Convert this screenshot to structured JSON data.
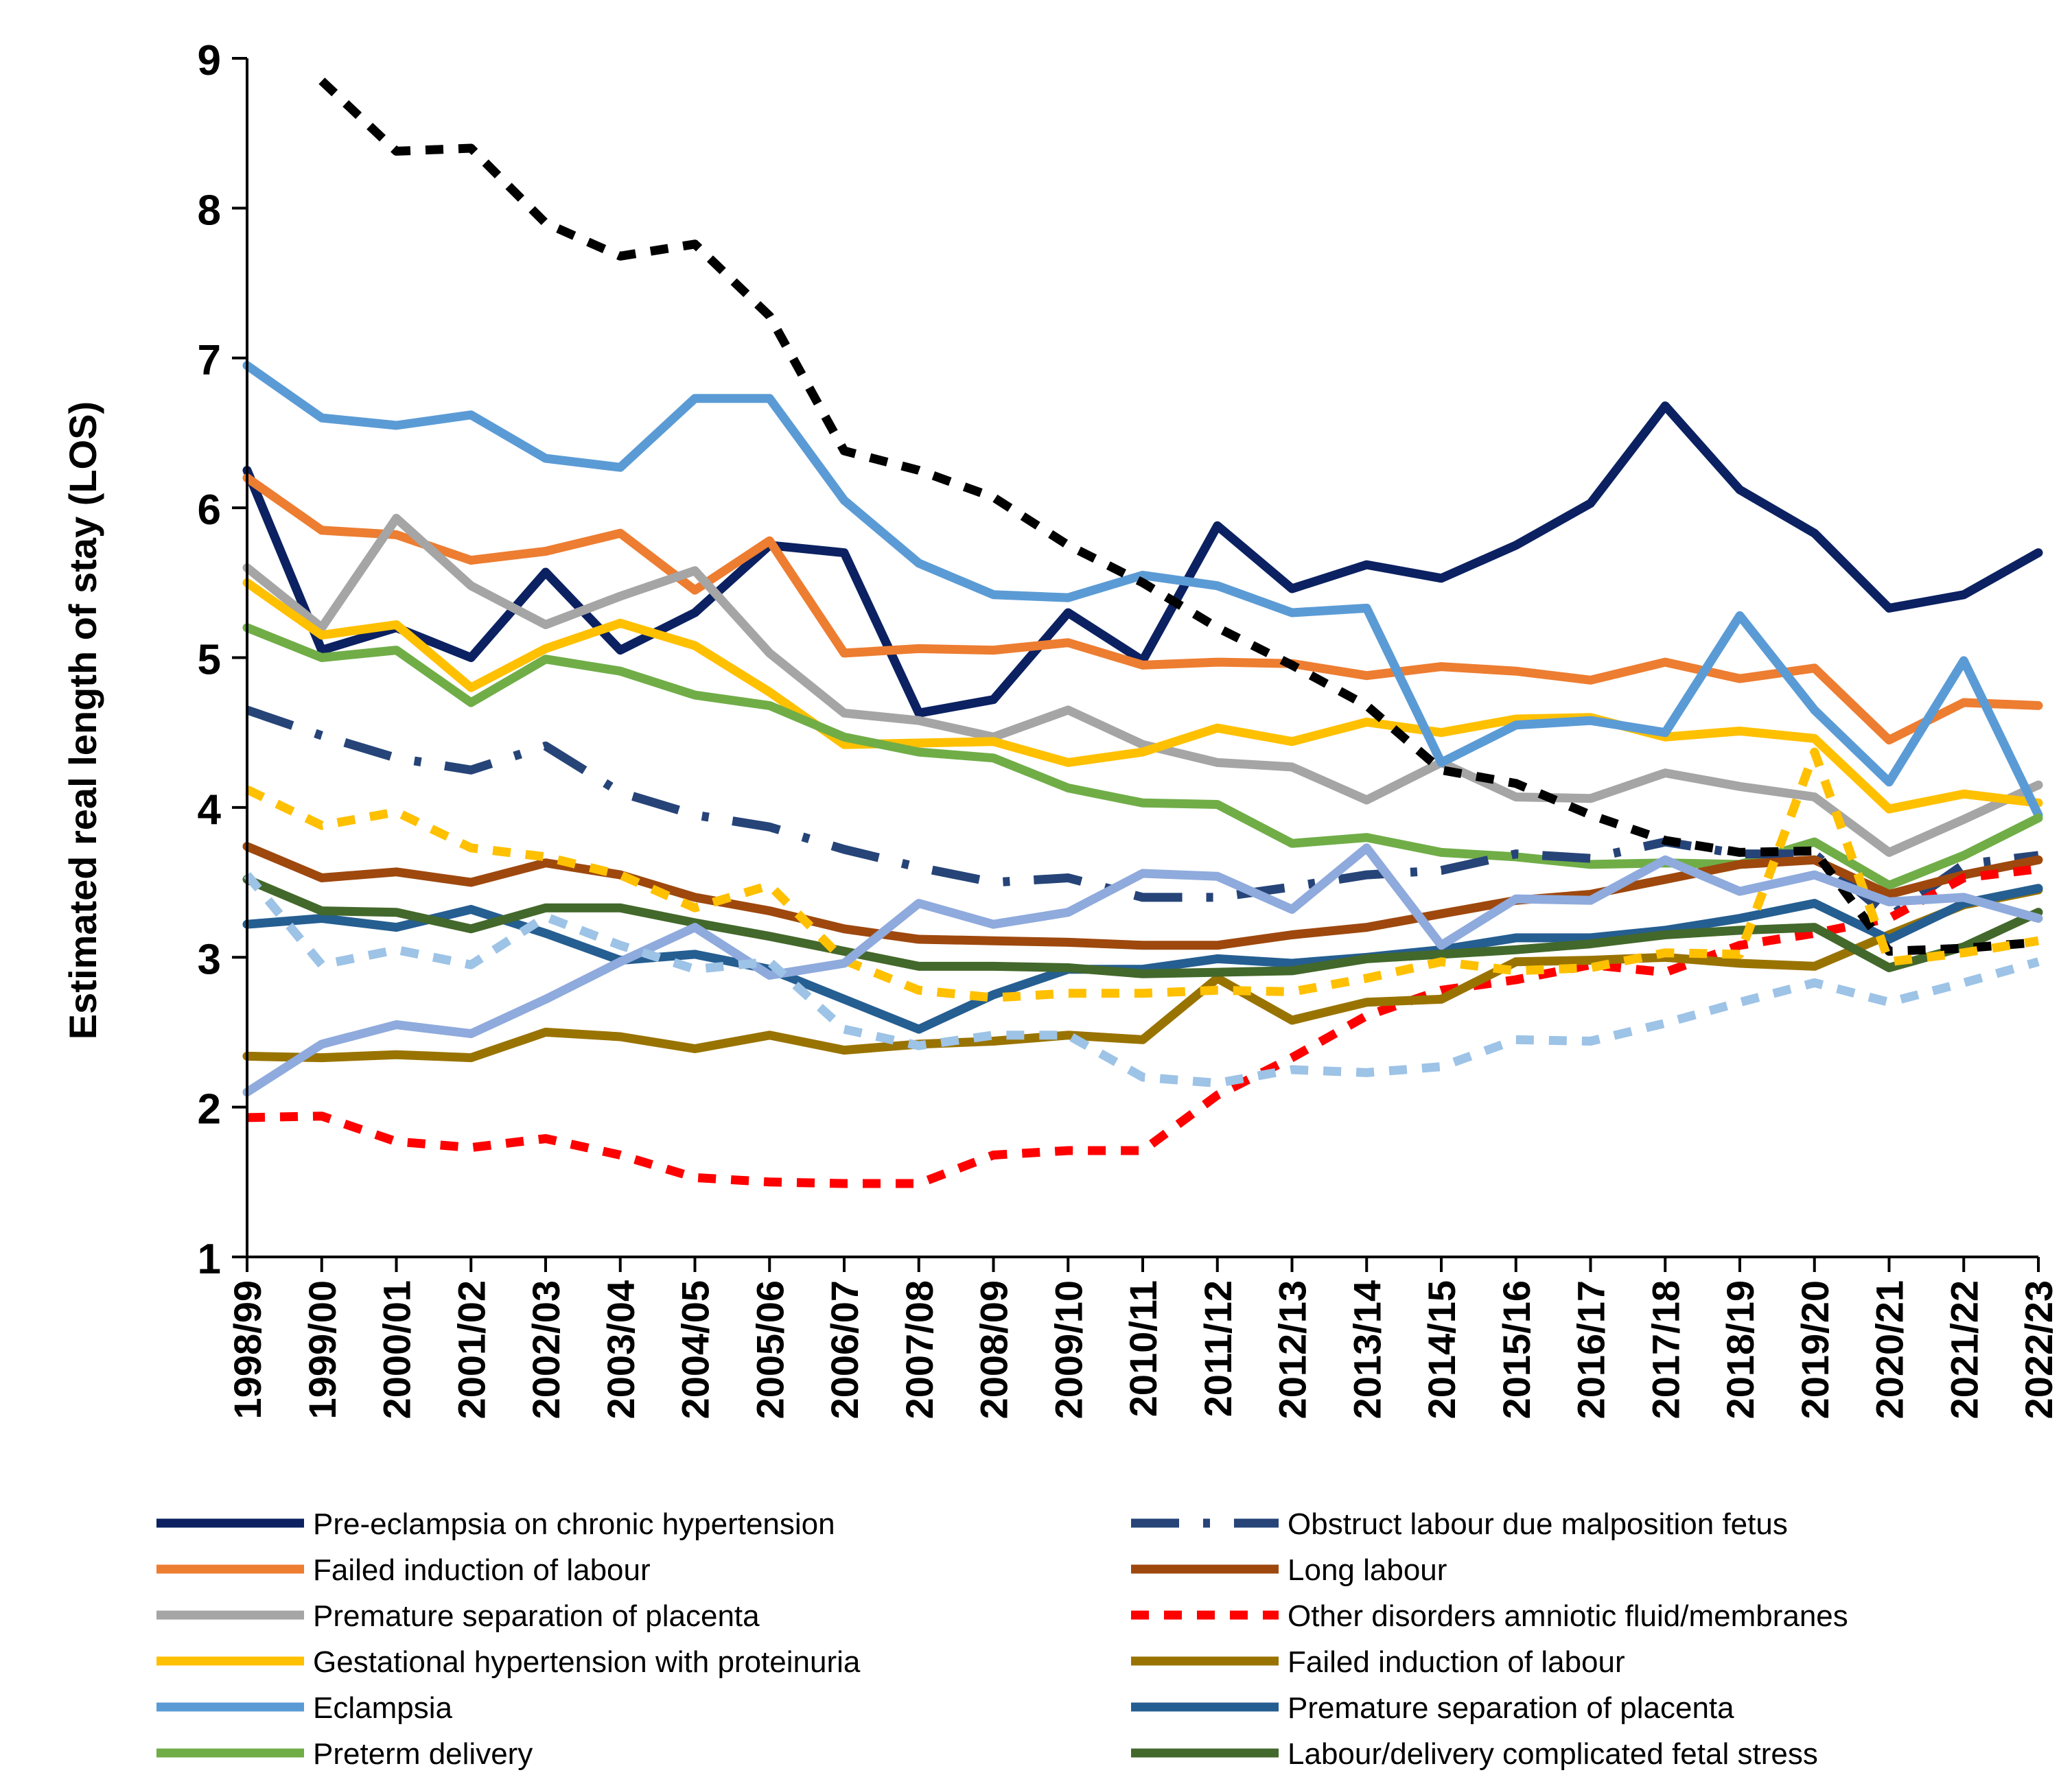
{
  "chart_data": {
    "type": "line",
    "title": "",
    "xlabel": "",
    "ylabel": "Estimated real length of stay (LOS)",
    "ylim": [
      1,
      9
    ],
    "yticks": [
      1,
      2,
      3,
      4,
      5,
      6,
      7,
      8,
      9
    ],
    "grid": false,
    "legend_position": "bottom",
    "categories": [
      "1998/99",
      "1999/00",
      "2000/01",
      "2001/02",
      "2002/03",
      "2003/04",
      "2004/05",
      "2005/06",
      "2006/07",
      "2007/08",
      "2008/09",
      "2009/10",
      "2010/11",
      "2011/12",
      "2012/13",
      "2013/14",
      "2014/15",
      "2015/16",
      "2016/17",
      "2017/18",
      "2018/19",
      "2019/20",
      "2020/21",
      "2021/22",
      "2022/23"
    ],
    "series": [
      {
        "name": "Pre-eclampsia on chronic hypertension",
        "color": "#0b2161",
        "dash": "solid",
        "values": [
          6.25,
          5.05,
          5.2,
          5.0,
          5.57,
          5.05,
          5.3,
          5.75,
          5.7,
          4.63,
          4.72,
          5.3,
          4.98,
          5.88,
          5.46,
          5.62,
          5.53,
          5.75,
          6.03,
          6.68,
          6.12,
          5.83,
          5.33,
          5.42,
          5.7
        ]
      },
      {
        "name": "Failed induction of labour",
        "color": "#ed7d31",
        "dash": "solid",
        "values": [
          6.2,
          5.85,
          5.82,
          5.65,
          5.71,
          5.83,
          5.45,
          5.78,
          5.03,
          5.06,
          5.05,
          5.1,
          4.95,
          4.97,
          4.96,
          4.88,
          4.94,
          4.91,
          4.85,
          4.97,
          4.86,
          4.93,
          4.45,
          4.7,
          4.68
        ]
      },
      {
        "name": "Premature separation of placenta",
        "color": "#a5a5a5",
        "dash": "solid",
        "values": [
          5.6,
          5.2,
          5.93,
          5.48,
          5.22,
          5.41,
          5.58,
          5.03,
          4.63,
          4.58,
          4.47,
          4.65,
          4.42,
          4.3,
          4.27,
          4.05,
          4.3,
          4.07,
          4.06,
          4.23,
          4.14,
          4.07,
          3.7,
          3.92,
          4.15
        ]
      },
      {
        "name": "Gestational hypertension with proteinuria",
        "color": "#ffc000",
        "dash": "solid",
        "values": [
          5.5,
          5.15,
          5.22,
          4.8,
          5.06,
          5.23,
          5.08,
          4.77,
          4.42,
          4.43,
          4.44,
          4.3,
          4.37,
          4.53,
          4.44,
          4.57,
          4.5,
          4.59,
          4.6,
          4.47,
          4.51,
          4.46,
          3.99,
          4.09,
          4.03
        ]
      },
      {
        "name": "Eclampsia",
        "color": "#5b9bd5",
        "dash": "solid",
        "values": [
          6.95,
          6.6,
          6.55,
          6.62,
          6.33,
          6.27,
          6.73,
          6.73,
          6.05,
          5.63,
          5.42,
          5.4,
          5.55,
          5.48,
          5.3,
          5.33,
          4.3,
          4.55,
          4.58,
          4.5,
          5.28,
          4.65,
          4.17,
          4.98,
          3.95
        ]
      },
      {
        "name": "Preterm delivery",
        "color": "#70ad47",
        "dash": "solid",
        "values": [
          5.2,
          5.0,
          5.05,
          4.7,
          4.99,
          4.91,
          4.75,
          4.68,
          4.47,
          4.37,
          4.33,
          4.13,
          4.03,
          4.02,
          3.76,
          3.8,
          3.7,
          3.67,
          3.62,
          3.63,
          3.62,
          3.77,
          3.48,
          3.68,
          3.93
        ]
      },
      {
        "name": "Obstruct labour due malposition fetus",
        "color": "#264478",
        "dash": "longdashdot",
        "values": [
          4.65,
          4.48,
          4.33,
          4.25,
          4.41,
          4.1,
          3.95,
          3.87,
          3.72,
          3.6,
          3.5,
          3.53,
          3.4,
          3.4,
          3.47,
          3.55,
          3.58,
          3.69,
          3.66,
          3.77,
          3.69,
          3.69,
          3.27,
          3.62,
          3.68
        ]
      },
      {
        "name": "Long labour",
        "color": "#9e480e",
        "dash": "solid",
        "values": [
          3.74,
          3.53,
          3.57,
          3.5,
          3.63,
          3.55,
          3.4,
          3.31,
          3.19,
          3.12,
          3.11,
          3.1,
          3.08,
          3.08,
          3.15,
          3.2,
          3.29,
          3.38,
          3.42,
          3.52,
          3.62,
          3.65,
          3.42,
          3.55,
          3.65
        ]
      },
      {
        "name": "Other disorders amniotic fluid/membranes",
        "color": "#ff0000",
        "dash": "dash",
        "values": [
          1.93,
          1.94,
          1.77,
          1.73,
          1.79,
          1.68,
          1.53,
          1.5,
          1.49,
          1.49,
          1.68,
          1.71,
          1.71,
          2.08,
          2.33,
          2.61,
          2.78,
          2.85,
          2.95,
          2.9,
          3.08,
          3.16,
          3.26,
          3.53,
          3.59
        ]
      },
      {
        "name": "Failed induction of labour",
        "color": "#997300",
        "dash": "solid",
        "values": [
          2.34,
          2.33,
          2.35,
          2.33,
          2.5,
          2.47,
          2.39,
          2.48,
          2.38,
          2.42,
          2.44,
          2.48,
          2.45,
          2.86,
          2.58,
          2.7,
          2.72,
          2.97,
          2.98,
          3.0,
          2.96,
          2.94,
          3.15,
          3.35,
          3.45
        ]
      },
      {
        "name": "Premature separation of placenta",
        "color": "#255e91",
        "dash": "solid",
        "values": [
          3.22,
          3.26,
          3.2,
          3.32,
          3.16,
          2.98,
          3.02,
          2.92,
          2.72,
          2.52,
          2.75,
          2.92,
          2.92,
          2.99,
          2.96,
          3.0,
          3.05,
          3.13,
          3.13,
          3.18,
          3.26,
          3.36,
          3.12,
          3.36,
          3.46
        ]
      },
      {
        "name": "Labour/delivery complicated fetal stress",
        "color": "#43682b",
        "dash": "solid",
        "values": [
          3.52,
          3.31,
          3.3,
          3.19,
          3.33,
          3.33,
          3.23,
          3.14,
          3.04,
          2.94,
          2.94,
          2.93,
          2.89,
          2.9,
          2.91,
          2.99,
          3.02,
          3.05,
          3.09,
          3.15,
          3.18,
          3.2,
          2.93,
          3.07,
          3.3
        ]
      },
      {
        "name": "",
        "color": "#000000",
        "dash": "dash",
        "legend": false,
        "values": [
          null,
          8.85,
          8.38,
          8.4,
          7.9,
          7.68,
          7.76,
          7.28,
          6.38,
          6.25,
          6.07,
          5.75,
          5.5,
          5.2,
          4.95,
          4.68,
          4.25,
          4.16,
          3.95,
          3.78,
          3.7,
          3.71,
          3.04,
          3.06,
          3.1
        ]
      },
      {
        "name": "",
        "color": "#ffc000",
        "dash": "dash",
        "legend": false,
        "values": [
          4.12,
          3.88,
          3.97,
          3.73,
          3.67,
          3.55,
          3.33,
          3.48,
          2.98,
          2.78,
          2.73,
          2.76,
          2.76,
          2.78,
          2.77,
          2.86,
          2.97,
          2.91,
          2.93,
          3.03,
          3.02,
          4.37,
          2.97,
          3.03,
          3.11
        ]
      },
      {
        "name": "",
        "color": "#8faadc",
        "dash": "solid",
        "legend": false,
        "values": [
          2.1,
          2.42,
          2.55,
          2.49,
          2.72,
          2.97,
          3.2,
          2.88,
          2.96,
          3.36,
          3.22,
          3.3,
          3.56,
          3.54,
          3.32,
          3.73,
          3.08,
          3.39,
          3.38,
          3.65,
          3.44,
          3.55,
          3.37,
          3.4,
          3.26
        ]
      },
      {
        "name": "",
        "color": "#9dc3e6",
        "dash": "dash",
        "legend": false,
        "values": [
          3.55,
          2.95,
          3.05,
          2.95,
          3.27,
          3.08,
          2.92,
          2.97,
          2.52,
          2.41,
          2.48,
          2.48,
          2.2,
          2.16,
          2.25,
          2.23,
          2.27,
          2.45,
          2.44,
          2.56,
          2.7,
          2.83,
          2.7,
          2.83,
          2.97
        ]
      }
    ]
  }
}
